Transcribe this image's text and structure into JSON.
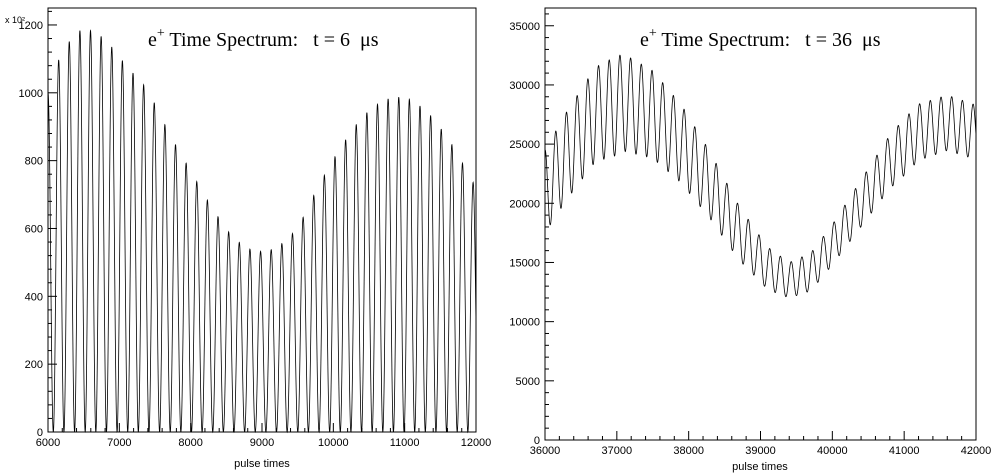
{
  "chart_data": [
    {
      "type": "line",
      "title_main": "e",
      "title_sup": "+",
      "title_rest": " Time Spectrum:   t = 6  μs",
      "xlabel": "pulse times",
      "ylabel": "",
      "y_multiplier_label": "x 10²",
      "xlim": [
        6000,
        12000
      ],
      "ylim": [
        0,
        1250
      ],
      "x_ticks": [
        "6000",
        "7000",
        "8000",
        "9000",
        "10000",
        "11000",
        "12000"
      ],
      "y_ticks": [
        "0",
        "200",
        "400",
        "600",
        "800",
        "1000",
        "1200"
      ],
      "series": [
        {
          "name": "",
          "osc_period": 149.0,
          "x_start": 6000,
          "x_end": 12000,
          "min_value": 0,
          "envelope": [
            [
              6000,
              1000
            ],
            [
              6200,
              1130
            ],
            [
              6500,
              1195
            ],
            [
              6800,
              1160
            ],
            [
              7100,
              1080
            ],
            [
              7400,
              1010
            ],
            [
              7700,
              880
            ],
            [
              8000,
              770
            ],
            [
              8300,
              660
            ],
            [
              8600,
              570
            ],
            [
              8900,
              530
            ],
            [
              9200,
              540
            ],
            [
              9500,
              600
            ],
            [
              9800,
              730
            ],
            [
              10100,
              840
            ],
            [
              10400,
              930
            ],
            [
              10700,
              980
            ],
            [
              11000,
              990
            ],
            [
              11300,
              950
            ],
            [
              11600,
              870
            ],
            [
              11900,
              760
            ],
            [
              12000,
              720
            ]
          ]
        }
      ]
    },
    {
      "type": "line",
      "title_main": "e",
      "title_sup": "+",
      "title_rest": " Time Spectrum:   t = 36  μs",
      "xlabel": "pulse times",
      "ylabel": "",
      "xlim": [
        36000,
        42000
      ],
      "ylim": [
        0,
        36500
      ],
      "x_ticks": [
        "36000",
        "37000",
        "38000",
        "39000",
        "40000",
        "41000",
        "42000"
      ],
      "y_ticks": [
        "0",
        "5000",
        "10000",
        "15000",
        "20000",
        "25000",
        "30000",
        "35000"
      ],
      "series": [
        {
          "name": "",
          "osc_period": 149.0,
          "x_start": 36000,
          "x_end": 42000,
          "center": [
            [
              36000,
              21000
            ],
            [
              36300,
              24000
            ],
            [
              36700,
              27500
            ],
            [
              37100,
              28500
            ],
            [
              37500,
              27500
            ],
            [
              37900,
              25000
            ],
            [
              38300,
              21500
            ],
            [
              38700,
              17500
            ],
            [
              39100,
              14500
            ],
            [
              39400,
              13500
            ],
            [
              39700,
              14200
            ],
            [
              40000,
              16500
            ],
            [
              40400,
              20000
            ],
            [
              40800,
              23500
            ],
            [
              41200,
              26000
            ],
            [
              41600,
              26800
            ],
            [
              42000,
              26000
            ]
          ],
          "amplitude": [
            [
              36000,
              3500
            ],
            [
              37000,
              4200
            ],
            [
              38000,
              3200
            ],
            [
              39000,
              1900
            ],
            [
              39400,
              1500
            ],
            [
              40000,
              1700
            ],
            [
              41000,
              2400
            ],
            [
              42000,
              2300
            ]
          ]
        }
      ]
    }
  ]
}
